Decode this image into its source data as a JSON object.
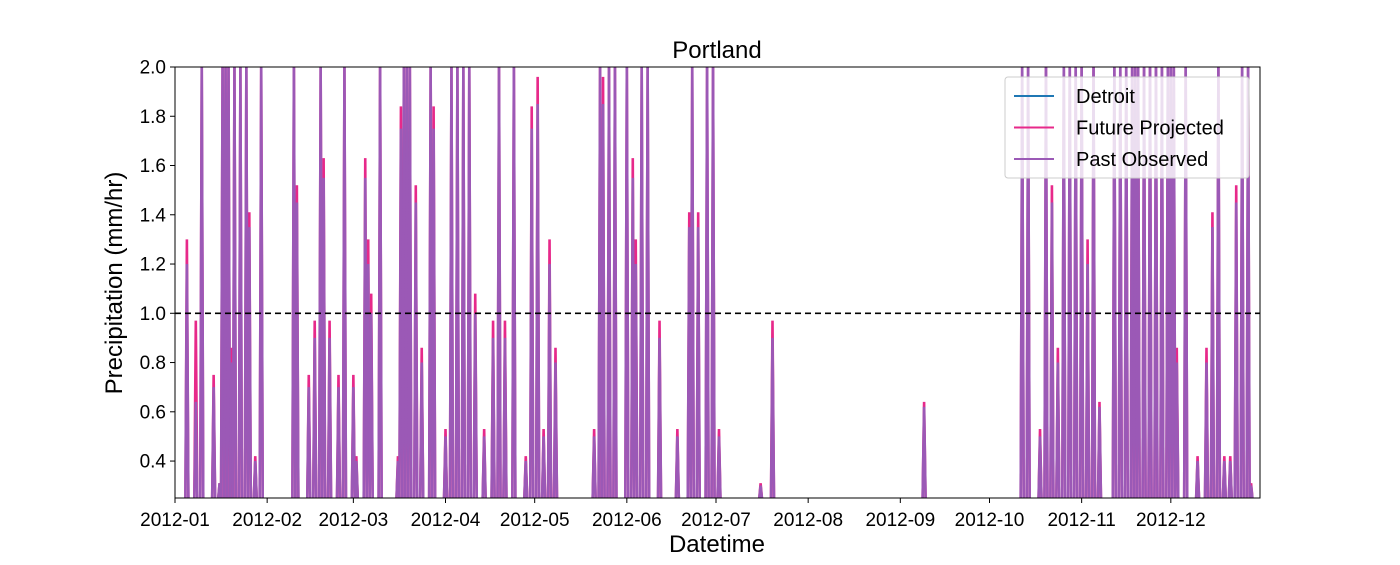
{
  "chart_data": {
    "type": "line",
    "title": "Portland",
    "xlabel": "Datetime",
    "ylabel": "Precipitation (mm/hr)",
    "ylim": [
      0.25,
      2.0
    ],
    "xlim": [
      "2012-01-01",
      "2012-12-31"
    ],
    "x_tick_labels": [
      "2012-01",
      "2012-02",
      "2012-03",
      "2012-04",
      "2012-05",
      "2012-06",
      "2012-07",
      "2012-08",
      "2012-09",
      "2012-10",
      "2012-11",
      "2012-12"
    ],
    "y_tick_labels": [
      "0.4",
      "0.6",
      "0.8",
      "1.0",
      "1.2",
      "1.4",
      "1.6",
      "1.8",
      "2.0"
    ],
    "y_ticks": [
      0.4,
      0.6,
      0.8,
      1.0,
      1.2,
      1.4,
      1.6,
      1.8,
      2.0
    ],
    "threshold": 1.0,
    "threshold_style": "dashed black",
    "legend_placement": "top-right",
    "series": [
      {
        "name": "Detroit",
        "color": "#1f77b4",
        "points": []
      },
      {
        "name": "Future Projected",
        "color": "#e7298a",
        "points": [
          [
            "2012-01-05",
            1.3
          ],
          [
            "2012-01-08",
            0.97
          ],
          [
            "2012-01-10",
            2.0
          ],
          [
            "2012-01-14",
            0.75
          ],
          [
            "2012-01-16",
            0.31
          ],
          [
            "2012-01-17",
            2.0
          ],
          [
            "2012-01-18",
            2.0
          ],
          [
            "2012-01-19",
            2.0
          ],
          [
            "2012-01-20",
            0.86
          ],
          [
            "2012-01-21",
            2.0
          ],
          [
            "2012-01-23",
            2.0
          ],
          [
            "2012-01-25",
            2.0
          ],
          [
            "2012-01-26",
            1.41
          ],
          [
            "2012-01-28",
            0.42
          ],
          [
            "2012-01-30",
            2.0
          ],
          [
            "2012-02-10",
            2.0
          ],
          [
            "2012-02-11",
            1.52
          ],
          [
            "2012-02-15",
            0.75
          ],
          [
            "2012-02-17",
            0.97
          ],
          [
            "2012-02-19",
            2.0
          ],
          [
            "2012-02-20",
            1.63
          ],
          [
            "2012-02-22",
            0.97
          ],
          [
            "2012-02-25",
            0.75
          ],
          [
            "2012-02-27",
            2.0
          ],
          [
            "2012-03-01",
            0.75
          ],
          [
            "2012-03-02",
            0.42
          ],
          [
            "2012-03-05",
            1.63
          ],
          [
            "2012-03-06",
            1.3
          ],
          [
            "2012-03-07",
            1.08
          ],
          [
            "2012-03-10",
            2.0
          ],
          [
            "2012-03-16",
            0.42
          ],
          [
            "2012-03-17",
            1.84
          ],
          [
            "2012-03-18",
            2.0
          ],
          [
            "2012-03-19",
            2.0
          ],
          [
            "2012-03-20",
            2.0
          ],
          [
            "2012-03-22",
            1.52
          ],
          [
            "2012-03-24",
            0.86
          ],
          [
            "2012-03-27",
            2.0
          ],
          [
            "2012-03-28",
            1.84
          ],
          [
            "2012-04-01",
            0.53
          ],
          [
            "2012-04-03",
            2.0
          ],
          [
            "2012-04-05",
            2.0
          ],
          [
            "2012-04-07",
            2.0
          ],
          [
            "2012-04-09",
            2.0
          ],
          [
            "2012-04-11",
            1.08
          ],
          [
            "2012-04-14",
            0.53
          ],
          [
            "2012-04-17",
            0.97
          ],
          [
            "2012-04-19",
            2.0
          ],
          [
            "2012-04-21",
            0.97
          ],
          [
            "2012-04-24",
            2.0
          ],
          [
            "2012-04-28",
            0.42
          ],
          [
            "2012-04-30",
            1.84
          ],
          [
            "2012-05-02",
            1.96
          ],
          [
            "2012-05-04",
            0.53
          ],
          [
            "2012-05-06",
            1.3
          ],
          [
            "2012-05-08",
            0.86
          ],
          [
            "2012-05-21",
            0.53
          ],
          [
            "2012-05-23",
            2.0
          ],
          [
            "2012-05-24",
            1.96
          ],
          [
            "2012-05-26",
            2.0
          ],
          [
            "2012-05-28",
            2.0
          ],
          [
            "2012-06-01",
            2.0
          ],
          [
            "2012-06-03",
            1.63
          ],
          [
            "2012-06-04",
            1.3
          ],
          [
            "2012-06-06",
            2.0
          ],
          [
            "2012-06-08",
            2.0
          ],
          [
            "2012-06-12",
            0.97
          ],
          [
            "2012-06-18",
            0.53
          ],
          [
            "2012-06-22",
            1.41
          ],
          [
            "2012-06-23",
            2.0
          ],
          [
            "2012-06-25",
            1.41
          ],
          [
            "2012-06-28",
            2.0
          ],
          [
            "2012-06-30",
            2.0
          ],
          [
            "2012-07-02",
            0.53
          ],
          [
            "2012-07-16",
            0.31
          ],
          [
            "2012-07-20",
            0.97
          ],
          [
            "2012-09-09",
            0.64
          ],
          [
            "2012-10-12",
            2.0
          ],
          [
            "2012-10-14",
            2.0
          ],
          [
            "2012-10-18",
            0.53
          ],
          [
            "2012-10-20",
            2.0
          ],
          [
            "2012-10-22",
            1.52
          ],
          [
            "2012-10-24",
            0.86
          ],
          [
            "2012-10-26",
            2.0
          ],
          [
            "2012-10-28",
            2.0
          ],
          [
            "2012-10-30",
            2.0
          ],
          [
            "2012-11-01",
            2.0
          ],
          [
            "2012-11-03",
            1.3
          ],
          [
            "2012-11-05",
            2.0
          ],
          [
            "2012-11-07",
            0.64
          ],
          [
            "2012-11-12",
            2.0
          ],
          [
            "2012-11-14",
            2.0
          ],
          [
            "2012-11-16",
            2.0
          ],
          [
            "2012-11-18",
            2.0
          ],
          [
            "2012-11-19",
            2.0
          ],
          [
            "2012-11-20",
            2.0
          ],
          [
            "2012-11-22",
            2.0
          ],
          [
            "2012-11-24",
            2.0
          ],
          [
            "2012-11-26",
            2.0
          ],
          [
            "2012-11-28",
            2.0
          ],
          [
            "2012-11-30",
            2.0
          ],
          [
            "2012-12-01",
            2.0
          ],
          [
            "2012-12-02",
            2.0
          ],
          [
            "2012-12-03",
            0.86
          ],
          [
            "2012-12-06",
            2.0
          ],
          [
            "2012-12-10",
            0.42
          ],
          [
            "2012-12-13",
            0.86
          ],
          [
            "2012-12-15",
            1.41
          ],
          [
            "2012-12-17",
            2.0
          ],
          [
            "2012-12-19",
            0.42
          ],
          [
            "2012-12-21",
            0.42
          ],
          [
            "2012-12-23",
            1.52
          ],
          [
            "2012-12-25",
            2.0
          ],
          [
            "2012-12-27",
            2.0
          ],
          [
            "2012-12-28",
            0.31
          ]
        ]
      },
      {
        "name": "Past Observed",
        "color": "#9b59b6",
        "points": [
          [
            "2012-01-05",
            1.2
          ],
          [
            "2012-01-08",
            0.64
          ],
          [
            "2012-01-10",
            2.0
          ],
          [
            "2012-01-14",
            0.7
          ],
          [
            "2012-01-16",
            0.31
          ],
          [
            "2012-01-17",
            2.0
          ],
          [
            "2012-01-18",
            2.0
          ],
          [
            "2012-01-19",
            2.0
          ],
          [
            "2012-01-20",
            0.8
          ],
          [
            "2012-01-21",
            2.0
          ],
          [
            "2012-01-23",
            2.0
          ],
          [
            "2012-01-25",
            2.0
          ],
          [
            "2012-01-26",
            1.35
          ],
          [
            "2012-01-28",
            0.4
          ],
          [
            "2012-01-30",
            2.0
          ],
          [
            "2012-02-10",
            2.0
          ],
          [
            "2012-02-11",
            1.45
          ],
          [
            "2012-02-15",
            0.7
          ],
          [
            "2012-02-17",
            0.9
          ],
          [
            "2012-02-19",
            2.0
          ],
          [
            "2012-02-20",
            1.55
          ],
          [
            "2012-02-22",
            0.9
          ],
          [
            "2012-02-25",
            0.7
          ],
          [
            "2012-02-27",
            2.0
          ],
          [
            "2012-03-01",
            0.7
          ],
          [
            "2012-03-02",
            0.4
          ],
          [
            "2012-03-05",
            1.55
          ],
          [
            "2012-03-06",
            1.2
          ],
          [
            "2012-03-07",
            1.0
          ],
          [
            "2012-03-10",
            2.0
          ],
          [
            "2012-03-16",
            0.4
          ],
          [
            "2012-03-17",
            1.75
          ],
          [
            "2012-03-18",
            2.0
          ],
          [
            "2012-03-19",
            2.0
          ],
          [
            "2012-03-20",
            2.0
          ],
          [
            "2012-03-22",
            1.45
          ],
          [
            "2012-03-24",
            0.8
          ],
          [
            "2012-03-27",
            2.0
          ],
          [
            "2012-03-28",
            1.75
          ],
          [
            "2012-04-01",
            0.5
          ],
          [
            "2012-04-03",
            2.0
          ],
          [
            "2012-04-05",
            2.0
          ],
          [
            "2012-04-07",
            2.0
          ],
          [
            "2012-04-09",
            2.0
          ],
          [
            "2012-04-11",
            1.0
          ],
          [
            "2012-04-14",
            0.5
          ],
          [
            "2012-04-17",
            0.9
          ],
          [
            "2012-04-19",
            2.0
          ],
          [
            "2012-04-21",
            0.9
          ],
          [
            "2012-04-24",
            2.0
          ],
          [
            "2012-04-28",
            0.4
          ],
          [
            "2012-04-30",
            1.75
          ],
          [
            "2012-05-02",
            1.85
          ],
          [
            "2012-05-04",
            0.5
          ],
          [
            "2012-05-06",
            1.2
          ],
          [
            "2012-05-08",
            0.8
          ],
          [
            "2012-05-21",
            0.5
          ],
          [
            "2012-05-23",
            2.0
          ],
          [
            "2012-05-24",
            1.85
          ],
          [
            "2012-05-26",
            2.0
          ],
          [
            "2012-05-28",
            2.0
          ],
          [
            "2012-06-01",
            2.0
          ],
          [
            "2012-06-03",
            1.55
          ],
          [
            "2012-06-04",
            1.2
          ],
          [
            "2012-06-06",
            2.0
          ],
          [
            "2012-06-08",
            2.0
          ],
          [
            "2012-06-12",
            0.9
          ],
          [
            "2012-06-18",
            0.5
          ],
          [
            "2012-06-22",
            1.35
          ],
          [
            "2012-06-23",
            2.0
          ],
          [
            "2012-06-25",
            1.35
          ],
          [
            "2012-06-28",
            2.0
          ],
          [
            "2012-06-30",
            2.0
          ],
          [
            "2012-07-02",
            0.5
          ],
          [
            "2012-07-16",
            0.3
          ],
          [
            "2012-07-20",
            0.9
          ],
          [
            "2012-09-09",
            0.62
          ],
          [
            "2012-10-12",
            2.0
          ],
          [
            "2012-10-14",
            2.0
          ],
          [
            "2012-10-18",
            0.5
          ],
          [
            "2012-10-20",
            2.0
          ],
          [
            "2012-10-22",
            1.45
          ],
          [
            "2012-10-24",
            0.8
          ],
          [
            "2012-10-26",
            2.0
          ],
          [
            "2012-10-28",
            2.0
          ],
          [
            "2012-10-30",
            2.0
          ],
          [
            "2012-11-01",
            2.0
          ],
          [
            "2012-11-03",
            1.2
          ],
          [
            "2012-11-05",
            2.0
          ],
          [
            "2012-11-07",
            0.62
          ],
          [
            "2012-11-12",
            2.0
          ],
          [
            "2012-11-14",
            2.0
          ],
          [
            "2012-11-16",
            2.0
          ],
          [
            "2012-11-18",
            2.0
          ],
          [
            "2012-11-19",
            2.0
          ],
          [
            "2012-11-20",
            2.0
          ],
          [
            "2012-11-22",
            2.0
          ],
          [
            "2012-11-24",
            2.0
          ],
          [
            "2012-11-26",
            2.0
          ],
          [
            "2012-11-28",
            2.0
          ],
          [
            "2012-11-30",
            2.0
          ],
          [
            "2012-12-01",
            2.0
          ],
          [
            "2012-12-02",
            2.0
          ],
          [
            "2012-12-03",
            0.8
          ],
          [
            "2012-12-06",
            2.0
          ],
          [
            "2012-12-10",
            0.4
          ],
          [
            "2012-12-13",
            0.8
          ],
          [
            "2012-12-15",
            1.35
          ],
          [
            "2012-12-17",
            2.0
          ],
          [
            "2012-12-19",
            0.4
          ],
          [
            "2012-12-21",
            0.4
          ],
          [
            "2012-12-23",
            1.45
          ],
          [
            "2012-12-25",
            2.0
          ],
          [
            "2012-12-27",
            2.0
          ],
          [
            "2012-12-28",
            0.3
          ]
        ]
      }
    ]
  }
}
